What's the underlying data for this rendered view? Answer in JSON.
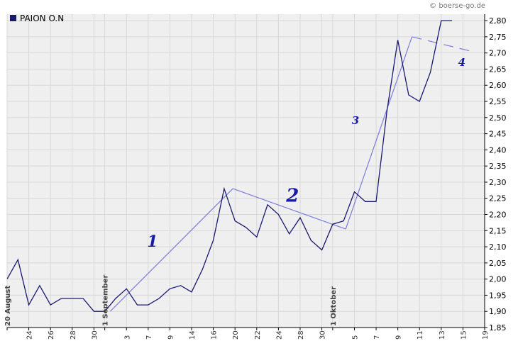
{
  "credit": "© boerse-go.de",
  "colors": {
    "price": "#191970",
    "trend": "#7b7bdc",
    "grid": "#d8d8d8",
    "plot_bg": "#efefef",
    "wave_label": "#1a1aaa"
  },
  "chart_data": {
    "type": "line",
    "legend": "PAION O.N",
    "legend_position": "top-left",
    "grid": true,
    "ylim": [
      1.85,
      2.82
    ],
    "yticks": [
      "2,80",
      "2,75",
      "2,70",
      "2,65",
      "2,60",
      "2,55",
      "2,50",
      "2,45",
      "2,40",
      "2,35",
      "2,30",
      "2,25",
      "2,20",
      "2,15",
      "2,10",
      "2,05",
      "2,00",
      "1,95",
      "1,90",
      "1,85"
    ],
    "ytick_values": [
      2.8,
      2.75,
      2.7,
      2.65,
      2.6,
      2.55,
      2.5,
      2.45,
      2.4,
      2.35,
      2.3,
      2.25,
      2.2,
      2.15,
      2.1,
      2.05,
      2.0,
      1.95,
      1.9,
      1.85
    ],
    "xlim": [
      0,
      44
    ],
    "xticks": [
      {
        "i": 0,
        "label": "20 August",
        "major": true
      },
      {
        "i": 2,
        "label": "24"
      },
      {
        "i": 4,
        "label": "26"
      },
      {
        "i": 6,
        "label": "28"
      },
      {
        "i": 8,
        "label": "30"
      },
      {
        "i": 9,
        "label": "1 September",
        "major": true
      },
      {
        "i": 11,
        "label": "3"
      },
      {
        "i": 13,
        "label": "7"
      },
      {
        "i": 15,
        "label": "9"
      },
      {
        "i": 17,
        "label": "14"
      },
      {
        "i": 19,
        "label": "16"
      },
      {
        "i": 21,
        "label": "20"
      },
      {
        "i": 23,
        "label": "22"
      },
      {
        "i": 25,
        "label": "24"
      },
      {
        "i": 27,
        "label": "28"
      },
      {
        "i": 29,
        "label": "30"
      },
      {
        "i": 30,
        "label": "1 Oktober",
        "major": true
      },
      {
        "i": 32,
        "label": "5"
      },
      {
        "i": 34,
        "label": "7"
      },
      {
        "i": 36,
        "label": "9"
      },
      {
        "i": 38,
        "label": "11"
      },
      {
        "i": 40,
        "label": "13"
      },
      {
        "i": 42,
        "label": "15"
      },
      {
        "i": 44,
        "label": "19"
      }
    ],
    "series": [
      {
        "values": [
          2.0,
          2.06,
          1.92,
          1.98,
          1.92,
          1.94,
          1.94,
          1.94,
          1.9,
          1.9,
          1.94,
          1.97,
          1.92,
          1.92,
          1.94,
          1.97,
          1.98,
          1.96,
          2.03,
          2.12,
          2.28,
          2.18,
          2.16,
          2.13,
          2.23,
          2.2,
          2.14,
          2.19,
          2.12,
          2.09,
          2.17,
          2.18,
          2.27,
          2.24,
          2.24,
          2.52,
          2.74,
          2.57,
          2.55,
          2.64,
          2.8,
          2.8
        ]
      }
    ],
    "trend_lines": [
      {
        "points": [
          [
            9.5,
            1.9
          ],
          [
            20.8,
            2.28
          ]
        ],
        "dashed": false
      },
      {
        "points": [
          [
            20.8,
            2.28
          ],
          [
            31.2,
            2.155
          ]
        ],
        "dashed": false
      },
      {
        "points": [
          [
            31.2,
            2.155
          ],
          [
            37.3,
            2.75
          ]
        ],
        "dashed": false
      },
      {
        "points": [
          [
            37.3,
            2.75
          ],
          [
            42.8,
            2.705
          ]
        ],
        "dashed": true
      }
    ],
    "annotations": [
      {
        "text": "1",
        "x": 13.4,
        "y": 2.1,
        "size": 22
      },
      {
        "text": "2",
        "x": 26.3,
        "y": 2.24,
        "size": 26
      },
      {
        "text": "3",
        "x": 32.1,
        "y": 2.48,
        "size": 15
      },
      {
        "text": "4",
        "x": 41.9,
        "y": 2.66,
        "size": 15
      }
    ]
  }
}
